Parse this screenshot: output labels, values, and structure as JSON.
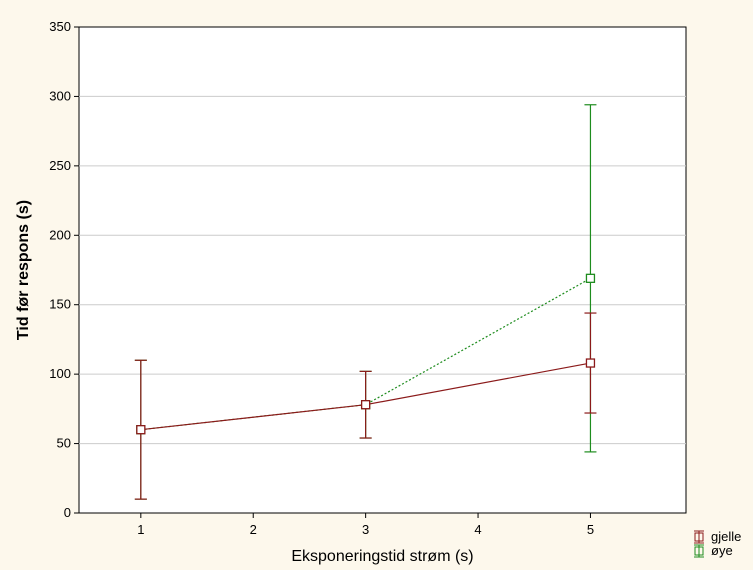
{
  "chart_data": {
    "type": "line",
    "xlabel": "Eksponeringstid strøm (s)",
    "ylabel": "Tid før respons (s)",
    "xlim": [
      0.45,
      5.85
    ],
    "ylim": [
      0,
      350
    ],
    "x_ticks": [
      "1",
      "2",
      "3",
      "4",
      "5"
    ],
    "y_ticks": [
      "0",
      "50",
      "100",
      "150",
      "200",
      "250",
      "300",
      "350"
    ],
    "grid": "horizontal",
    "legend_position": "bottom-right",
    "series": [
      {
        "name": "gjelle",
        "color": "#8b1a1a",
        "line_style": "solid",
        "marker": "square",
        "points": [
          {
            "x": 1,
            "y": 60,
            "lower": 10,
            "upper": 110
          },
          {
            "x": 3,
            "y": 78,
            "lower": 54,
            "upper": 102
          },
          {
            "x": 5,
            "y": 108,
            "lower": 72,
            "upper": 144
          }
        ]
      },
      {
        "name": "øye",
        "color": "#1e8c1e",
        "line_style": "dotted",
        "marker": "square",
        "points": [
          {
            "x": 1,
            "y": 60,
            "lower": 10,
            "upper": 110
          },
          {
            "x": 3,
            "y": 78,
            "lower": 54,
            "upper": 102
          },
          {
            "x": 5,
            "y": 169,
            "lower": 44,
            "upper": 294
          }
        ]
      }
    ]
  }
}
